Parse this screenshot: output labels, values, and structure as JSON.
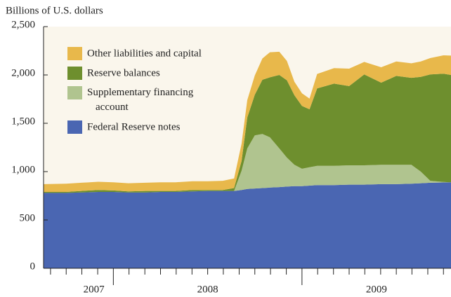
{
  "chart_data": {
    "type": "stacked_area",
    "ylabel": "Billions of U.S. dollars",
    "x": [
      2007.63,
      2007.75,
      2007.83,
      2007.92,
      2008.0,
      2008.08,
      2008.17,
      2008.25,
      2008.33,
      2008.42,
      2008.5,
      2008.58,
      2008.64,
      2008.68,
      2008.71,
      2008.75,
      2008.79,
      2008.83,
      2008.88,
      2008.92,
      2008.96,
      2009.0,
      2009.04,
      2009.08,
      2009.17,
      2009.25,
      2009.33,
      2009.42,
      2009.5,
      2009.58,
      2009.63,
      2009.68,
      2009.75,
      2009.79
    ],
    "series": [
      {
        "name": "Federal Reserve notes",
        "color": "#4a66b2",
        "values": [
          780,
          780,
          785,
          790,
          790,
          785,
          785,
          790,
          790,
          795,
          800,
          800,
          800,
          810,
          820,
          825,
          830,
          835,
          840,
          845,
          850,
          850,
          855,
          860,
          860,
          865,
          865,
          870,
          870,
          875,
          880,
          885,
          888,
          890
        ]
      },
      {
        "name": "Supplementary financing\naccount",
        "color": "#b0c48f",
        "values": [
          0,
          0,
          0,
          0,
          0,
          0,
          0,
          0,
          0,
          0,
          0,
          0,
          0,
          200,
          420,
          550,
          560,
          520,
          400,
          300,
          220,
          180,
          190,
          200,
          200,
          200,
          200,
          200,
          200,
          195,
          120,
          20,
          5,
          0
        ]
      },
      {
        "name": "Reserve balances",
        "color": "#6e8f2e",
        "values": [
          10,
          10,
          15,
          20,
          15,
          10,
          15,
          10,
          10,
          15,
          10,
          10,
          30,
          100,
          320,
          420,
          560,
          620,
          760,
          800,
          720,
          650,
          600,
          800,
          850,
          820,
          940,
          850,
          920,
          900,
          980,
          1100,
          1120,
          1110
        ]
      },
      {
        "name": "Other liabilities and capital",
        "color": "#e8b84b",
        "values": [
          80,
          85,
          85,
          85,
          85,
          85,
          85,
          90,
          90,
          90,
          90,
          95,
          100,
          180,
          180,
          200,
          220,
          260,
          240,
          200,
          140,
          130,
          110,
          150,
          160,
          180,
          130,
          160,
          150,
          150,
          160,
          170,
          190,
          200
        ]
      }
    ],
    "xlim": [
      2007.63,
      2009.79
    ],
    "xticks": [
      {
        "value": 2007,
        "label": "2007"
      },
      {
        "value": 2008,
        "label": "2008"
      },
      {
        "value": 2009,
        "label": "2009"
      }
    ],
    "xminorticks": [
      2007.667,
      2007.75,
      2007.833,
      2007.917,
      2008.083,
      2008.167,
      2008.25,
      2008.333,
      2008.417,
      2008.5,
      2008.583,
      2008.667,
      2008.75,
      2008.833,
      2008.917,
      2009.083,
      2009.167,
      2009.25,
      2009.333,
      2009.417,
      2009.5,
      2009.583,
      2009.667,
      2009.75
    ],
    "ylim": [
      0,
      2500
    ],
    "yticks": [
      0,
      500,
      {
        "value": 1000,
        "label": "1,000"
      },
      {
        "value": 1500,
        "label": "1,500"
      },
      {
        "value": 2000,
        "label": "2,000"
      },
      {
        "value": 2500,
        "label": "2,500"
      }
    ],
    "legend": "upper left",
    "background": "#faf6ec"
  }
}
